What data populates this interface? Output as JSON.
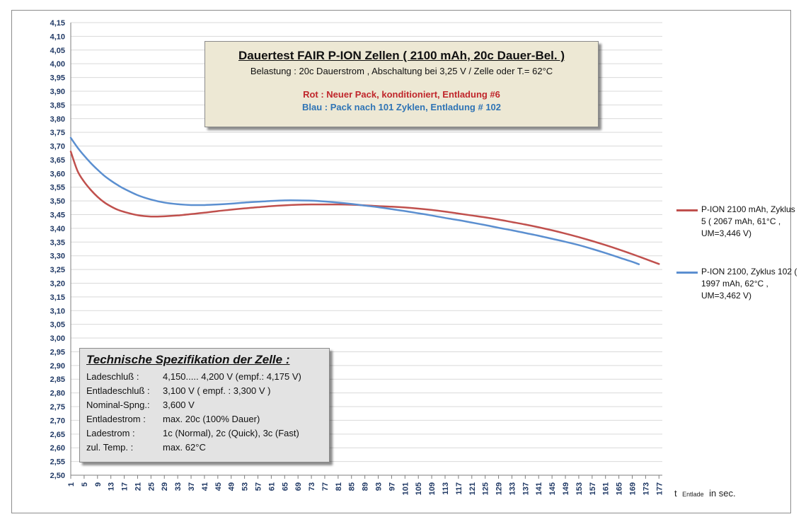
{
  "chart_data": {
    "type": "line",
    "y_ticks": [
      "4,15",
      "4,10",
      "4,05",
      "4,00",
      "3,95",
      "3,90",
      "3,85",
      "3,80",
      "3,75",
      "3,70",
      "3,65",
      "3,60",
      "3,55",
      "3,50",
      "3,45",
      "3,40",
      "3,35",
      "3,30",
      "3,25",
      "3,20",
      "3,15",
      "3,10",
      "3,05",
      "3,00",
      "2,95",
      "2,90",
      "2,85",
      "2,80",
      "2,75",
      "2,70",
      "2,65",
      "2,60",
      "2,55",
      "2,50"
    ],
    "ylim": [
      2.5,
      4.15
    ],
    "xlim": [
      1,
      178
    ],
    "x_ticks": [
      "1",
      "5",
      "9",
      "13",
      "17",
      "21",
      "25",
      "29",
      "33",
      "37",
      "41",
      "45",
      "49",
      "53",
      "57",
      "61",
      "65",
      "69",
      "73",
      "77",
      "81",
      "85",
      "89",
      "93",
      "97",
      "101",
      "105",
      "109",
      "113",
      "117",
      "121",
      "125",
      "129",
      "133",
      "137",
      "141",
      "145",
      "149",
      "153",
      "157",
      "161",
      "165",
      "169",
      "173",
      "177"
    ],
    "xlabel_main": "t",
    "xlabel_sub": "Entlade",
    "xlabel_unit": "in sec.",
    "grid": true,
    "legend_position": "right",
    "series": [
      {
        "name": "P-ION 2100 mAh, Zyklus 5  ( 2067 mAh, 61°C , UM=3,446 V)",
        "color": "#c0504d",
        "x": [
          1,
          3,
          5,
          7,
          9,
          11,
          13,
          15,
          17,
          21,
          25,
          29,
          33,
          37,
          41,
          45,
          49,
          53,
          57,
          61,
          65,
          69,
          73,
          77,
          81,
          85,
          89,
          93,
          97,
          101,
          105,
          109,
          113,
          117,
          121,
          125,
          129,
          133,
          137,
          141,
          145,
          149,
          153,
          157,
          161,
          165,
          169,
          173,
          177
        ],
        "y": [
          3.68,
          3.61,
          3.57,
          3.54,
          3.515,
          3.495,
          3.48,
          3.468,
          3.46,
          3.448,
          3.443,
          3.444,
          3.447,
          3.452,
          3.457,
          3.463,
          3.468,
          3.473,
          3.477,
          3.481,
          3.484,
          3.486,
          3.487,
          3.487,
          3.487,
          3.486,
          3.484,
          3.481,
          3.479,
          3.476,
          3.472,
          3.467,
          3.461,
          3.454,
          3.447,
          3.44,
          3.432,
          3.423,
          3.414,
          3.404,
          3.393,
          3.381,
          3.368,
          3.354,
          3.339,
          3.323,
          3.306,
          3.288,
          3.27
        ]
      },
      {
        "name": "P-ION 2100, Zyklus 102 ( 1997 mAh, 62°C , UM=3,462 V)",
        "color": "#5b8fd0",
        "x": [
          1,
          3,
          5,
          7,
          9,
          11,
          13,
          15,
          17,
          21,
          25,
          29,
          33,
          37,
          41,
          45,
          49,
          53,
          57,
          61,
          65,
          69,
          73,
          77,
          81,
          85,
          89,
          93,
          97,
          101,
          105,
          109,
          113,
          117,
          121,
          125,
          129,
          133,
          137,
          141,
          145,
          149,
          153,
          157,
          161,
          165,
          169,
          171
        ],
        "y": [
          3.73,
          3.695,
          3.665,
          3.638,
          3.614,
          3.592,
          3.574,
          3.558,
          3.544,
          3.521,
          3.505,
          3.494,
          3.488,
          3.485,
          3.485,
          3.487,
          3.49,
          3.494,
          3.497,
          3.5,
          3.502,
          3.502,
          3.501,
          3.498,
          3.494,
          3.489,
          3.483,
          3.477,
          3.47,
          3.463,
          3.455,
          3.447,
          3.438,
          3.43,
          3.421,
          3.412,
          3.402,
          3.393,
          3.383,
          3.373,
          3.362,
          3.351,
          3.339,
          3.325,
          3.31,
          3.294,
          3.278,
          3.269
        ]
      }
    ]
  },
  "title_box": {
    "title": "Dauertest FAIR P-ION Zellen ( 2100 mAh, 20c Dauer-Bel. )",
    "subtitle": "Belastung : 20c Dauerstrom , Abschaltung bei 3,25 V / Zelle oder T.= 62°C",
    "rot_line": "Rot : Neuer Pack, konditioniert, Entladung #6",
    "blau_line": "Blau :  Pack nach 101 Zyklen, Entladung # 102"
  },
  "spec_box": {
    "title": "Technische Spezifikation der Zelle :",
    "rows": [
      {
        "label": "Ladeschluß :",
        "value": "4,150..... 4,200 V (empf.: 4,175 V)"
      },
      {
        "label": "Entladeschluß :",
        "value": "3,100 V ( empf. : 3,300 V )"
      },
      {
        "label": "Nominal-Spng.:",
        "value": "3,600 V"
      },
      {
        "label": "Entladestrom :",
        "value": "max. 20c (100% Dauer)"
      },
      {
        "label": "Ladestrom :",
        "value": "1c (Normal), 2c (Quick), 3c (Fast)"
      },
      {
        "label": "zul. Temp. :",
        "value": "max. 62°C"
      }
    ]
  },
  "legend": {
    "item1": "P-ION 2100 mAh, Zyklus 5  ( 2067 mAh, 61°C , UM=3,446 V)",
    "item2": "P-ION 2100, Zyklus 102 ( 1997 mAh, 62°C , UM=3,462 V)"
  }
}
